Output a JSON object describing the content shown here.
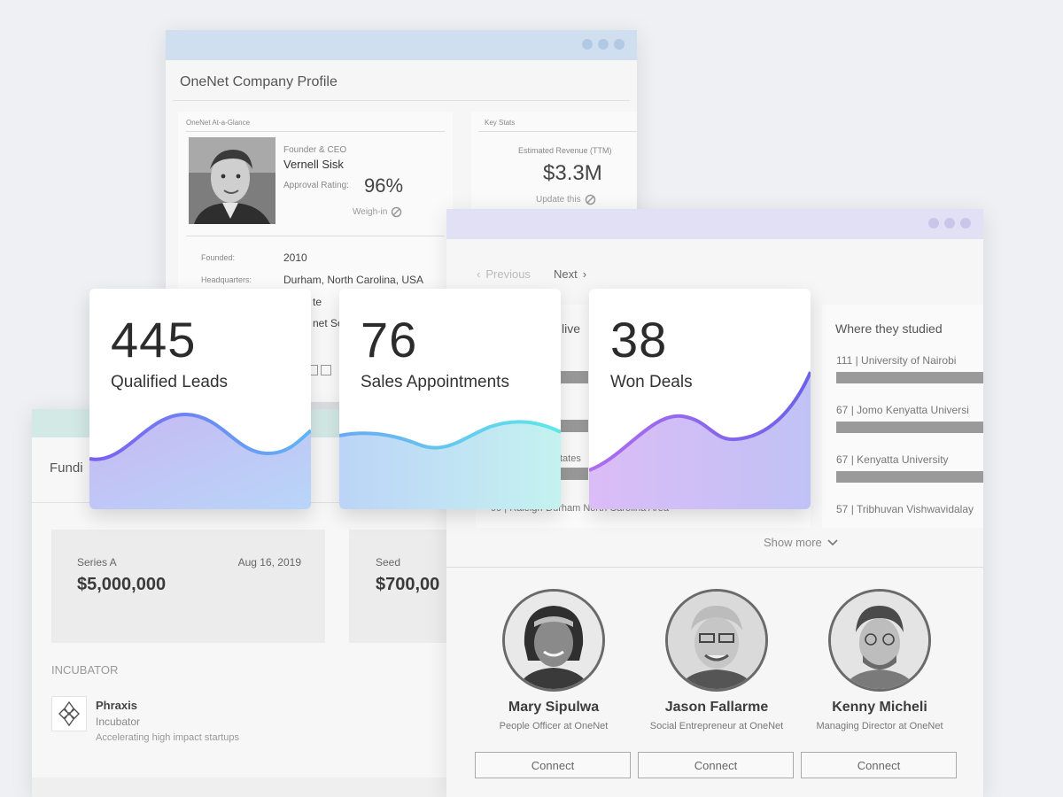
{
  "profile": {
    "title": "OneNet Company Profile",
    "glance_header": "OneNet At-a-Glance",
    "keystats_header": "Key Stats",
    "ceo_role": "Founder & CEO",
    "ceo_name": "Vernell Sisk",
    "approval_label": "Approval Rating:",
    "approval_value": "96%",
    "weigh_in": "Weigh-in",
    "revenue_label": "Estimated Revenue (TTM)",
    "revenue_value": "$3.3M",
    "update_this": "Update this",
    "founded_label": "Founded:",
    "founded_value": "2010",
    "hq_label": "Headquarters:",
    "hq_value": "Durham, North Carolina, USA",
    "partial_1": "te",
    "partial_2": "net Sof"
  },
  "funding": {
    "title_partial": "Fundi",
    "round1_type": "Series A",
    "round1_date": "Aug 16, 2019",
    "round1_amount": "$5,000,000",
    "round2_type": "Seed",
    "round2_amount": "$700,00",
    "incubator_header": "INCUBATOR",
    "incubator_name": "Phraxis",
    "incubator_type": "Incubator",
    "incubator_desc": "Accelerating high impact startups"
  },
  "right": {
    "prev": "Previous",
    "next": "Next",
    "live_partial": "live",
    "states_partial": "tates",
    "area_row": "99 | Raleigh-Durham North Carolina Area",
    "studied_header": "Where they studied",
    "universities": [
      {
        "count": "111",
        "name": "University of Nairobi"
      },
      {
        "count": "67",
        "name": "Jomo Kenyatta Universi"
      },
      {
        "count": "67",
        "name": "Kenyatta University"
      },
      {
        "count": "57",
        "name": "Tribhuvan Vishwavidalay"
      }
    ],
    "show_more": "Show more",
    "people": [
      {
        "name": "Mary Sipulwa",
        "role": "People Officer at OneNet",
        "connect": "Connect"
      },
      {
        "name": "Jason Fallarme",
        "role": "Social Entrepreneur at OneNet",
        "connect": "Connect"
      },
      {
        "name": "Kenny Micheli",
        "role": "Managing Director at OneNet",
        "connect": "Connect"
      }
    ]
  },
  "stats": [
    {
      "value": "445",
      "label": "Qualified Leads",
      "colors": [
        "#7b5cf0",
        "#5fb6f5"
      ]
    },
    {
      "value": "76",
      "label": "Sales Appointments",
      "colors": [
        "#6aa8f4",
        "#5fe8e8"
      ]
    },
    {
      "value": "38",
      "label": "Won Deals",
      "colors": [
        "#b06cf0",
        "#6b62ea"
      ]
    }
  ]
}
